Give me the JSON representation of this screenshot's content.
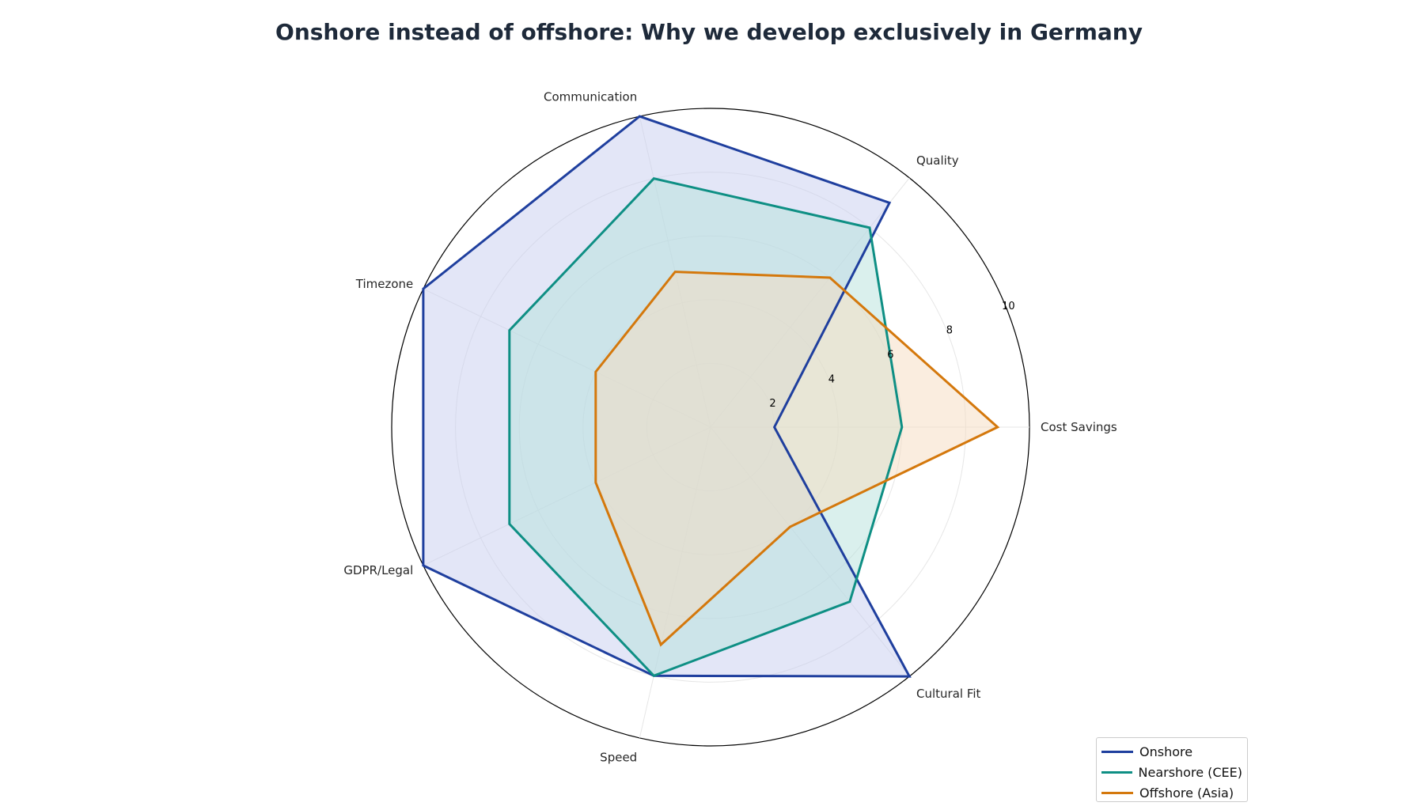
{
  "chart_data": {
    "type": "radar",
    "title": "Onshore instead of offshore: Why we develop exclusively in Germany",
    "categories": [
      "Cost Savings",
      "Quality",
      "Communication",
      "Timezone",
      "GDPR/Legal",
      "Speed",
      "Cultural Fit"
    ],
    "rlim": [
      0,
      10
    ],
    "rticks": [
      2,
      4,
      6,
      8,
      10
    ],
    "grid": true,
    "legend_position": "bottom-right",
    "series": [
      {
        "name": "Onshore",
        "values": [
          2,
          9,
          10,
          10,
          10,
          8,
          10
        ],
        "color": "#1f3f9e",
        "fill": "#c8cef0"
      },
      {
        "name": "Nearshore (CEE)",
        "values": [
          6,
          8,
          8,
          7,
          7,
          8,
          7
        ],
        "color": "#0e8f84",
        "fill": "#b5e2dc"
      },
      {
        "name": "Offshore (Asia)",
        "values": [
          9,
          6,
          5,
          4,
          4,
          7,
          4
        ],
        "color": "#d4780c",
        "fill": "#f5dcc0"
      }
    ]
  }
}
